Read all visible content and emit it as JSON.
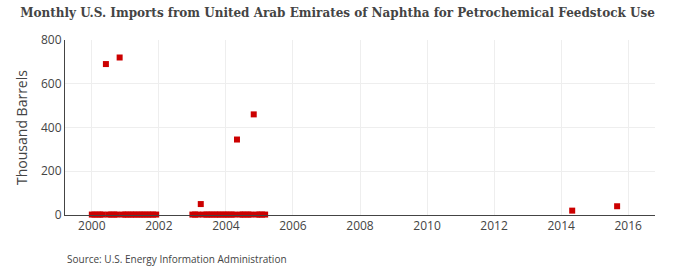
{
  "chart_data": {
    "type": "scatter",
    "title": "Monthly U.S. Imports from United Arab Emirates of Naphtha for Petrochemical Feedstock Use",
    "ylabel": "Thousand Barrels",
    "annotations": [
      "Source: U.S. Energy Information Administration"
    ],
    "color": "#cc0000",
    "marker": "square",
    "grid": true,
    "xlim": [
      1999.2,
      2016.8
    ],
    "ylim": [
      0,
      800
    ],
    "xticks": [
      2000,
      2002,
      2004,
      2006,
      2008,
      2010,
      2012,
      2014,
      2016
    ],
    "yticks": [
      0,
      200,
      400,
      600,
      800
    ],
    "x": [
      2000.42,
      2000.83,
      2003.25,
      2004.33,
      2004.83,
      2014.33,
      2015.67,
      2000.0,
      2000.08,
      2000.17,
      2000.25,
      2000.33,
      2000.5,
      2000.58,
      2000.67,
      2000.75,
      2000.92,
      2001.0,
      2001.08,
      2001.17,
      2001.25,
      2001.33,
      2001.42,
      2001.5,
      2001.58,
      2001.67,
      2001.75,
      2001.83,
      2001.92,
      2003.0,
      2003.08,
      2003.17,
      2003.33,
      2003.42,
      2003.5,
      2003.58,
      2003.67,
      2003.75,
      2003.83,
      2003.92,
      2004.0,
      2004.08,
      2004.17,
      2004.25,
      2004.42,
      2004.5,
      2004.58,
      2004.67,
      2004.75,
      2004.92,
      2005.0,
      2005.08,
      2005.17
    ],
    "values": [
      690,
      720,
      50,
      345,
      460,
      20,
      40,
      2,
      2,
      2,
      2,
      2,
      2,
      2,
      2,
      2,
      2,
      2,
      2,
      2,
      2,
      2,
      2,
      2,
      2,
      2,
      2,
      2,
      2,
      2,
      2,
      2,
      2,
      2,
      2,
      2,
      2,
      2,
      2,
      2,
      2,
      2,
      2,
      2,
      2,
      2,
      2,
      2,
      2,
      2,
      2,
      2,
      2
    ]
  }
}
